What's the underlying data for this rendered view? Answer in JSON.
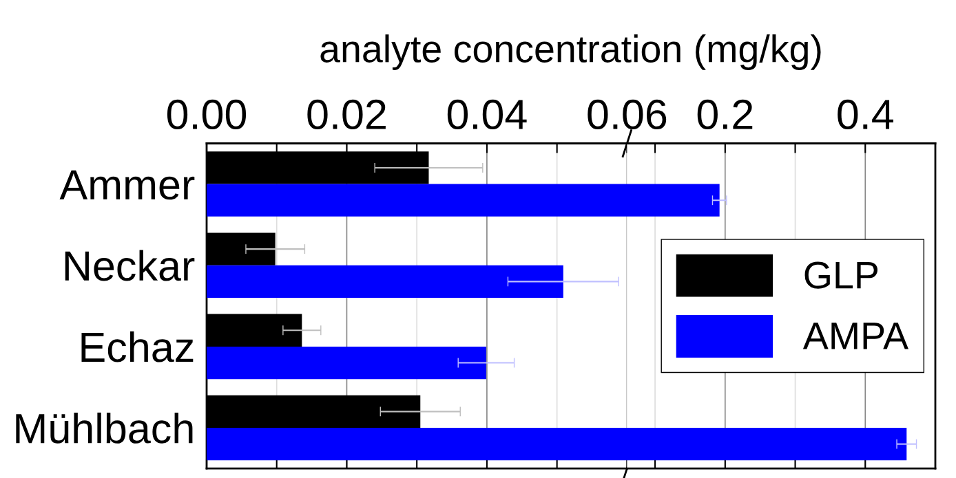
{
  "chart_data": [
    {
      "type": "bar",
      "orientation": "horizontal",
      "xlabel": "analyte concentration (mg/kg)",
      "categories": [
        "Ammer",
        "Neckar",
        "Echaz",
        "Mühlbach"
      ],
      "series": [
        {
          "color": "#000000",
          "values": [
            0.0317,
            0.0098,
            0.0136,
            0.0305
          ],
          "errors": [
            0.0077,
            0.0042,
            0.0027,
            0.0057
          ]
        },
        {
          "color": "#0000ff",
          "values": [
            null,
            0.0509,
            0.0399,
            null
          ],
          "errors": [
            null,
            0.0079,
            0.004,
            null
          ]
        }
      ],
      "xlim": [
        0,
        0.06
      ],
      "xticks": [
        {
          "value": 0,
          "label": "0.00"
        },
        {
          "value": 0.01,
          "label": null
        },
        {
          "value": 0.02,
          "label": "0.02"
        },
        {
          "value": 0.03,
          "label": null
        },
        {
          "value": 0.04,
          "label": "0.04"
        },
        {
          "value": 0.05,
          "label": null
        },
        {
          "value": 0.06,
          "label": "0.06"
        }
      ],
      "grid": "x"
    },
    {
      "type": "bar",
      "orientation": "horizontal",
      "categories": [
        null,
        null,
        null,
        null
      ],
      "series": [
        {
          "name": "GLP",
          "color": "#000000",
          "values": [
            null,
            null,
            null,
            null
          ]
        },
        {
          "name": "AMPA",
          "color": "#0000ff",
          "values": [
            0.192,
            null,
            null,
            0.459
          ],
          "errors": [
            0.01,
            null,
            null,
            0.014
          ]
        }
      ],
      "xlim": [
        0.06,
        0.5
      ],
      "xticks": [
        {
          "value": 0.1,
          "label": null
        },
        {
          "value": 0.2,
          "label": "0.2"
        },
        {
          "value": 0.3,
          "label": null
        },
        {
          "value": 0.4,
          "label": "0.4"
        }
      ],
      "grid": "x",
      "legend": "right",
      "tick_labels": "x"
    }
  ]
}
